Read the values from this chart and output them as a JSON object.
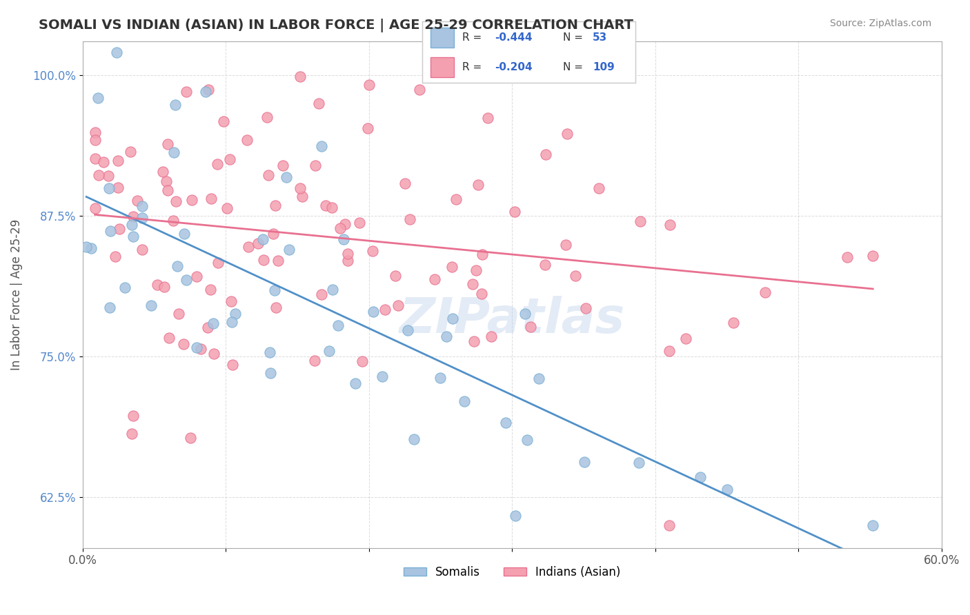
{
  "title": "SOMALI VS INDIAN (ASIAN) IN LABOR FORCE | AGE 25-29 CORRELATION CHART",
  "source_text": "Source: ZipAtlas.com",
  "xlabel": "",
  "ylabel": "In Labor Force | Age 25-29",
  "xlim": [
    0.0,
    0.6
  ],
  "ylim": [
    0.58,
    1.03
  ],
  "yticks": [
    0.625,
    0.75,
    0.875,
    1.0
  ],
  "ytick_labels": [
    "62.5%",
    "75.0%",
    "87.5%",
    "100.0%"
  ],
  "xticks": [
    0.0,
    0.1,
    0.2,
    0.3,
    0.4,
    0.5,
    0.6
  ],
  "xtick_labels": [
    "0.0%",
    "",
    "",
    "",
    "",
    "",
    "60.0%"
  ],
  "legend_R1": "-0.444",
  "legend_N1": "53",
  "legend_R2": "-0.204",
  "legend_N2": "109",
  "somali_color": "#a8c4e0",
  "indian_color": "#f4a0b0",
  "somali_edge": "#7aafd4",
  "indian_edge": "#e87090",
  "trend_somali_color": "#5090c8",
  "trend_indian_color": "#e87090",
  "background_color": "#ffffff",
  "watermark": "ZIPatlas",
  "title_color": "#333333",
  "source_color": "#888888",
  "label_color": "#555555",
  "ytick_color": "#5588cc",
  "legend_text_color": "#3366cc"
}
